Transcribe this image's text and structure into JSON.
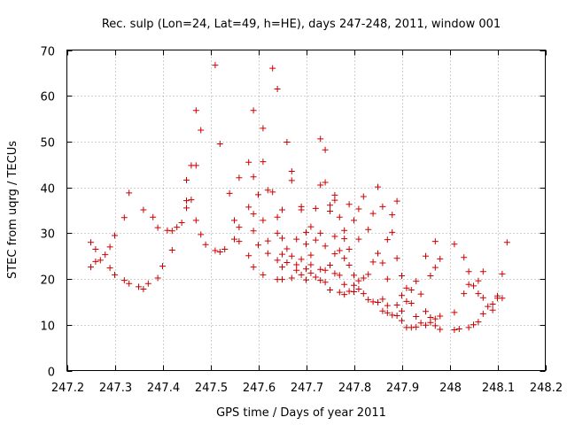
{
  "chart_data": {
    "type": "scatter",
    "title": "Rec. sulp (Lon=24, Lat=49, h=HE), days 247-248, 2011, window 001",
    "xlabel": "GPS time / Days of year 2011",
    "ylabel": "STEC from uqrg / TECUs",
    "xlim": [
      247.2,
      248.2
    ],
    "ylim": [
      0,
      70
    ],
    "xticks": [
      247.2,
      247.3,
      247.4,
      247.5,
      247.6,
      247.7,
      247.8,
      247.9,
      248.0,
      248.1,
      248.2
    ],
    "xtick_labels": [
      "247.2",
      "247.3",
      "247.4",
      "247.5",
      "247.6",
      "247.7",
      "247.8",
      "247.9",
      "248",
      "248.1",
      "248.2"
    ],
    "yticks": [
      0,
      10,
      20,
      30,
      40,
      50,
      60,
      70
    ],
    "ytick_labels": [
      "0",
      "10",
      "20",
      "30",
      "40",
      "50",
      "60",
      "70"
    ],
    "grid": true,
    "marker": "+",
    "color": "#cc0000",
    "series": [
      {
        "name": "STEC",
        "points": [
          [
            247.25,
            28.0
          ],
          [
            247.25,
            22.6
          ],
          [
            247.26,
            23.8
          ],
          [
            247.26,
            26.5
          ],
          [
            247.27,
            24.1
          ],
          [
            247.28,
            25.3
          ],
          [
            247.29,
            27.0
          ],
          [
            247.29,
            22.4
          ],
          [
            247.3,
            29.5
          ],
          [
            247.3,
            20.9
          ],
          [
            247.32,
            33.4
          ],
          [
            247.32,
            19.7
          ],
          [
            247.33,
            38.8
          ],
          [
            247.33,
            19.0
          ],
          [
            247.35,
            18.3
          ],
          [
            247.36,
            17.8
          ],
          [
            247.36,
            35.1
          ],
          [
            247.37,
            19.0
          ],
          [
            247.38,
            33.5
          ],
          [
            247.39,
            20.2
          ],
          [
            247.39,
            31.2
          ],
          [
            247.4,
            22.8
          ],
          [
            247.41,
            30.6
          ],
          [
            247.42,
            26.3
          ],
          [
            247.42,
            30.5
          ],
          [
            247.43,
            31.3
          ],
          [
            247.44,
            32.3
          ],
          [
            247.45,
            35.5
          ],
          [
            247.45,
            37.1
          ],
          [
            247.45,
            41.6
          ],
          [
            247.46,
            37.3
          ],
          [
            247.46,
            44.8
          ],
          [
            247.47,
            32.8
          ],
          [
            247.47,
            44.8
          ],
          [
            247.47,
            56.8
          ],
          [
            247.48,
            29.7
          ],
          [
            247.48,
            52.5
          ],
          [
            247.49,
            27.5
          ],
          [
            247.51,
            26.2
          ],
          [
            247.51,
            66.7
          ],
          [
            247.52,
            25.9
          ],
          [
            247.52,
            49.5
          ],
          [
            247.53,
            26.5
          ],
          [
            247.54,
            38.7
          ],
          [
            247.55,
            28.7
          ],
          [
            247.55,
            32.8
          ],
          [
            247.56,
            28.2
          ],
          [
            247.56,
            31.3
          ],
          [
            247.56,
            42.1
          ],
          [
            247.58,
            35.7
          ],
          [
            247.58,
            45.5
          ],
          [
            247.58,
            25.1
          ],
          [
            247.59,
            22.6
          ],
          [
            247.59,
            30.5
          ],
          [
            247.59,
            34.2
          ],
          [
            247.59,
            42.3
          ],
          [
            247.59,
            56.8
          ],
          [
            247.6,
            38.4
          ],
          [
            247.6,
            27.4
          ],
          [
            247.61,
            20.9
          ],
          [
            247.61,
            52.9
          ],
          [
            247.61,
            45.6
          ],
          [
            247.61,
            32.8
          ],
          [
            247.62,
            28.3
          ],
          [
            247.62,
            39.4
          ],
          [
            247.62,
            25.6
          ],
          [
            247.63,
            66.0
          ],
          [
            247.63,
            39.0
          ],
          [
            247.64,
            30.0
          ],
          [
            247.64,
            61.5
          ],
          [
            247.64,
            19.9
          ],
          [
            247.64,
            33.5
          ],
          [
            247.64,
            24.1
          ],
          [
            247.65,
            35.1
          ],
          [
            247.65,
            22.6
          ],
          [
            247.65,
            28.9
          ],
          [
            247.65,
            25.4
          ],
          [
            247.65,
            19.9
          ],
          [
            247.66,
            49.9
          ],
          [
            247.66,
            23.6
          ],
          [
            247.66,
            26.6
          ],
          [
            247.67,
            20.2
          ],
          [
            247.67,
            25.0
          ],
          [
            247.67,
            43.5
          ],
          [
            247.67,
            41.5
          ],
          [
            247.68,
            28.7
          ],
          [
            247.68,
            23.1
          ],
          [
            247.68,
            21.9
          ],
          [
            247.69,
            35.8
          ],
          [
            247.69,
            35.1
          ],
          [
            247.69,
            24.3
          ],
          [
            247.69,
            20.9
          ],
          [
            247.7,
            22.2
          ],
          [
            247.7,
            27.6
          ],
          [
            247.7,
            19.8
          ],
          [
            247.7,
            30.2
          ],
          [
            247.71,
            25.2
          ],
          [
            247.71,
            21.3
          ],
          [
            247.71,
            31.4
          ],
          [
            247.71,
            23.1
          ],
          [
            247.72,
            20.4
          ],
          [
            247.72,
            35.4
          ],
          [
            247.72,
            28.5
          ],
          [
            247.73,
            19.7
          ],
          [
            247.73,
            22.1
          ],
          [
            247.73,
            40.5
          ],
          [
            247.73,
            50.6
          ],
          [
            247.73,
            30.0
          ],
          [
            247.74,
            27.2
          ],
          [
            247.74,
            21.9
          ],
          [
            247.74,
            19.3
          ],
          [
            247.74,
            48.2
          ],
          [
            247.74,
            41.1
          ],
          [
            247.75,
            36.1
          ],
          [
            247.75,
            23.0
          ],
          [
            247.75,
            17.6
          ],
          [
            247.75,
            34.8
          ],
          [
            247.76,
            25.5
          ],
          [
            247.76,
            38.3
          ],
          [
            247.76,
            37.2
          ],
          [
            247.76,
            21.2
          ],
          [
            247.76,
            29.3
          ],
          [
            247.77,
            17.1
          ],
          [
            247.77,
            26.2
          ],
          [
            247.77,
            20.8
          ],
          [
            247.77,
            33.5
          ],
          [
            247.78,
            18.8
          ],
          [
            247.78,
            16.6
          ],
          [
            247.78,
            28.8
          ],
          [
            247.78,
            24.5
          ],
          [
            247.78,
            30.6
          ],
          [
            247.79,
            17.3
          ],
          [
            247.79,
            23.0
          ],
          [
            247.79,
            26.5
          ],
          [
            247.79,
            36.3
          ],
          [
            247.8,
            17.2
          ],
          [
            247.8,
            20.8
          ],
          [
            247.8,
            18.6
          ],
          [
            247.8,
            32.8
          ],
          [
            247.81,
            19.6
          ],
          [
            247.81,
            17.8
          ],
          [
            247.81,
            35.3
          ],
          [
            247.81,
            28.7
          ],
          [
            247.82,
            20.2
          ],
          [
            247.82,
            16.8
          ],
          [
            247.82,
            38.0
          ],
          [
            247.83,
            30.8
          ],
          [
            247.83,
            21.0
          ],
          [
            247.83,
            15.5
          ],
          [
            247.84,
            34.3
          ],
          [
            247.84,
            23.7
          ],
          [
            247.84,
            15.0
          ],
          [
            247.85,
            14.9
          ],
          [
            247.85,
            40.1
          ],
          [
            247.85,
            25.6
          ],
          [
            247.86,
            23.5
          ],
          [
            247.86,
            15.6
          ],
          [
            247.86,
            13.0
          ],
          [
            247.86,
            35.8
          ],
          [
            247.87,
            28.6
          ],
          [
            247.87,
            20.0
          ],
          [
            247.87,
            14.2
          ],
          [
            247.87,
            12.6
          ],
          [
            247.88,
            34.0
          ],
          [
            247.88,
            12.1
          ],
          [
            247.88,
            30.2
          ],
          [
            247.89,
            14.3
          ],
          [
            247.89,
            12.0
          ],
          [
            247.89,
            37.0
          ],
          [
            247.89,
            24.5
          ],
          [
            247.9,
            20.7
          ],
          [
            247.9,
            13.0
          ],
          [
            247.9,
            16.4
          ],
          [
            247.9,
            10.9
          ],
          [
            247.91,
            15.1
          ],
          [
            247.91,
            9.4
          ],
          [
            247.91,
            18.0
          ],
          [
            247.92,
            17.6
          ],
          [
            247.92,
            14.7
          ],
          [
            247.92,
            9.4
          ],
          [
            247.93,
            19.5
          ],
          [
            247.93,
            11.8
          ],
          [
            247.93,
            9.5
          ],
          [
            247.94,
            16.7
          ],
          [
            247.94,
            10.4
          ],
          [
            247.95,
            12.9
          ],
          [
            247.95,
            9.9
          ],
          [
            247.95,
            25.0
          ],
          [
            247.96,
            11.6
          ],
          [
            247.96,
            10.5
          ],
          [
            247.96,
            20.7
          ],
          [
            247.97,
            22.5
          ],
          [
            247.97,
            11.3
          ],
          [
            247.97,
            9.8
          ],
          [
            247.97,
            28.2
          ],
          [
            247.98,
            11.9
          ],
          [
            247.98,
            9.0
          ],
          [
            247.98,
            24.4
          ],
          [
            248.01,
            12.7
          ],
          [
            248.01,
            27.6
          ],
          [
            248.01,
            8.9
          ],
          [
            248.02,
            9.1
          ],
          [
            248.03,
            16.8
          ],
          [
            248.03,
            24.7
          ],
          [
            248.04,
            18.8
          ],
          [
            248.04,
            21.6
          ],
          [
            248.04,
            9.4
          ],
          [
            248.05,
            10.0
          ],
          [
            248.05,
            18.5
          ],
          [
            248.06,
            10.6
          ],
          [
            248.06,
            19.6
          ],
          [
            248.06,
            16.8
          ],
          [
            248.07,
            15.9
          ],
          [
            248.07,
            21.6
          ],
          [
            248.07,
            12.4
          ],
          [
            248.08,
            14.0
          ],
          [
            248.09,
            13.2
          ],
          [
            248.09,
            14.5
          ],
          [
            248.1,
            16.3
          ],
          [
            248.1,
            15.8
          ],
          [
            248.11,
            21.1
          ],
          [
            248.11,
            15.8
          ],
          [
            248.12,
            28.0
          ]
        ]
      }
    ]
  }
}
